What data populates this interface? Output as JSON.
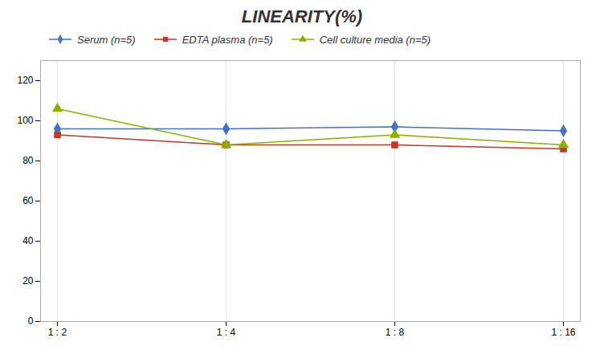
{
  "chart_data": {
    "type": "line",
    "title": "LINEARITY(%)",
    "categories": [
      "1 : 2",
      "1 : 4",
      "1 : 8",
      "1 : 16"
    ],
    "series": [
      {
        "name": "Serum (n=5)",
        "color": "#4472C4",
        "marker": "diamond",
        "values": [
          96,
          96,
          97,
          95
        ]
      },
      {
        "name": "EDTA plasma (n=5)",
        "color": "#C0392B",
        "marker": "square",
        "values": [
          93,
          88,
          88,
          86
        ]
      },
      {
        "name": "Cell culture media (n=5)",
        "color": "#8DB000",
        "marker": "triangle",
        "values": [
          106,
          88,
          93,
          88
        ]
      }
    ],
    "ylim": [
      0,
      130
    ],
    "yticks": [
      0,
      20,
      40,
      60,
      80,
      100,
      120
    ],
    "grid": "x",
    "legend": "top"
  }
}
